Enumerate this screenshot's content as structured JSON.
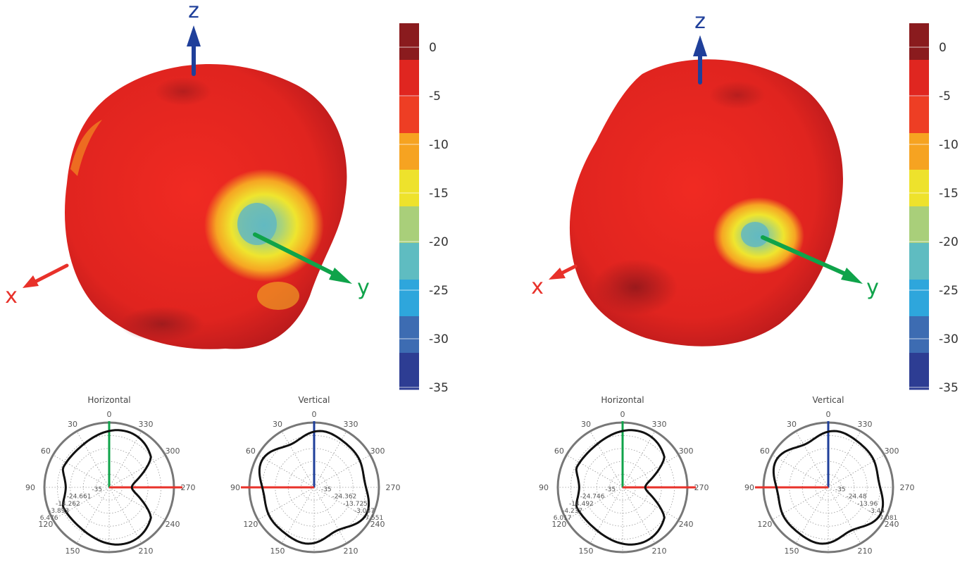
{
  "colors": {
    "x_axis": "#e8312a",
    "y_axis": "#0fa34a",
    "z_axis": "#1f3f9a",
    "pattern": "#ee2a22",
    "trace": "#111111",
    "rim": "#777777"
  },
  "colorbar": {
    "ticks": [
      "0",
      "-5",
      "-10",
      "-15",
      "-20",
      "-25",
      "-30",
      "-35"
    ],
    "stops": [
      "#8a1b1e",
      "#e02620",
      "#ee3e24",
      "#f6a321",
      "#eee22c",
      "#a9cf7a",
      "#5fbcc1",
      "#2ea6dc",
      "#3d6cb2",
      "#2d3d93"
    ]
  },
  "panels": [
    {
      "id": "left",
      "axis_labels": {
        "x": "x",
        "y": "y",
        "z": "z"
      },
      "polars": [
        {
          "title": "Horizontal",
          "angles": [
            "0",
            "330",
            "300",
            "270",
            "240",
            "210",
            "150",
            "120",
            "90",
            "60",
            "30"
          ],
          "ring_labels": [
            "-35",
            "-24.661",
            "-14.262",
            "-3.893",
            "6.476"
          ]
        },
        {
          "title": "Vertical",
          "angles": [
            "0",
            "330",
            "300",
            "270",
            "240",
            "210",
            "150",
            "120",
            "90",
            "60",
            "30"
          ],
          "ring_labels": [
            "-35",
            "-24.362",
            "-13.725",
            "-3.087",
            "7.551"
          ]
        }
      ]
    },
    {
      "id": "right",
      "axis_labels": {
        "x": "x",
        "y": "y",
        "z": "z"
      },
      "polars": [
        {
          "title": "Horizontal",
          "angles": [
            "0",
            "330",
            "300",
            "270",
            "240",
            "210",
            "150",
            "120",
            "90",
            "60",
            "30"
          ],
          "ring_labels": [
            "-35",
            "-24.746",
            "-14.492",
            "-4.237",
            "6.017"
          ]
        },
        {
          "title": "Vertical",
          "angles": [
            "0",
            "330",
            "300",
            "270",
            "240",
            "210",
            "150",
            "120",
            "90",
            "60",
            "30"
          ],
          "ring_labels": [
            "-35",
            "-24.48",
            "-13.96",
            "-3.44",
            "7.081"
          ]
        }
      ]
    }
  ]
}
